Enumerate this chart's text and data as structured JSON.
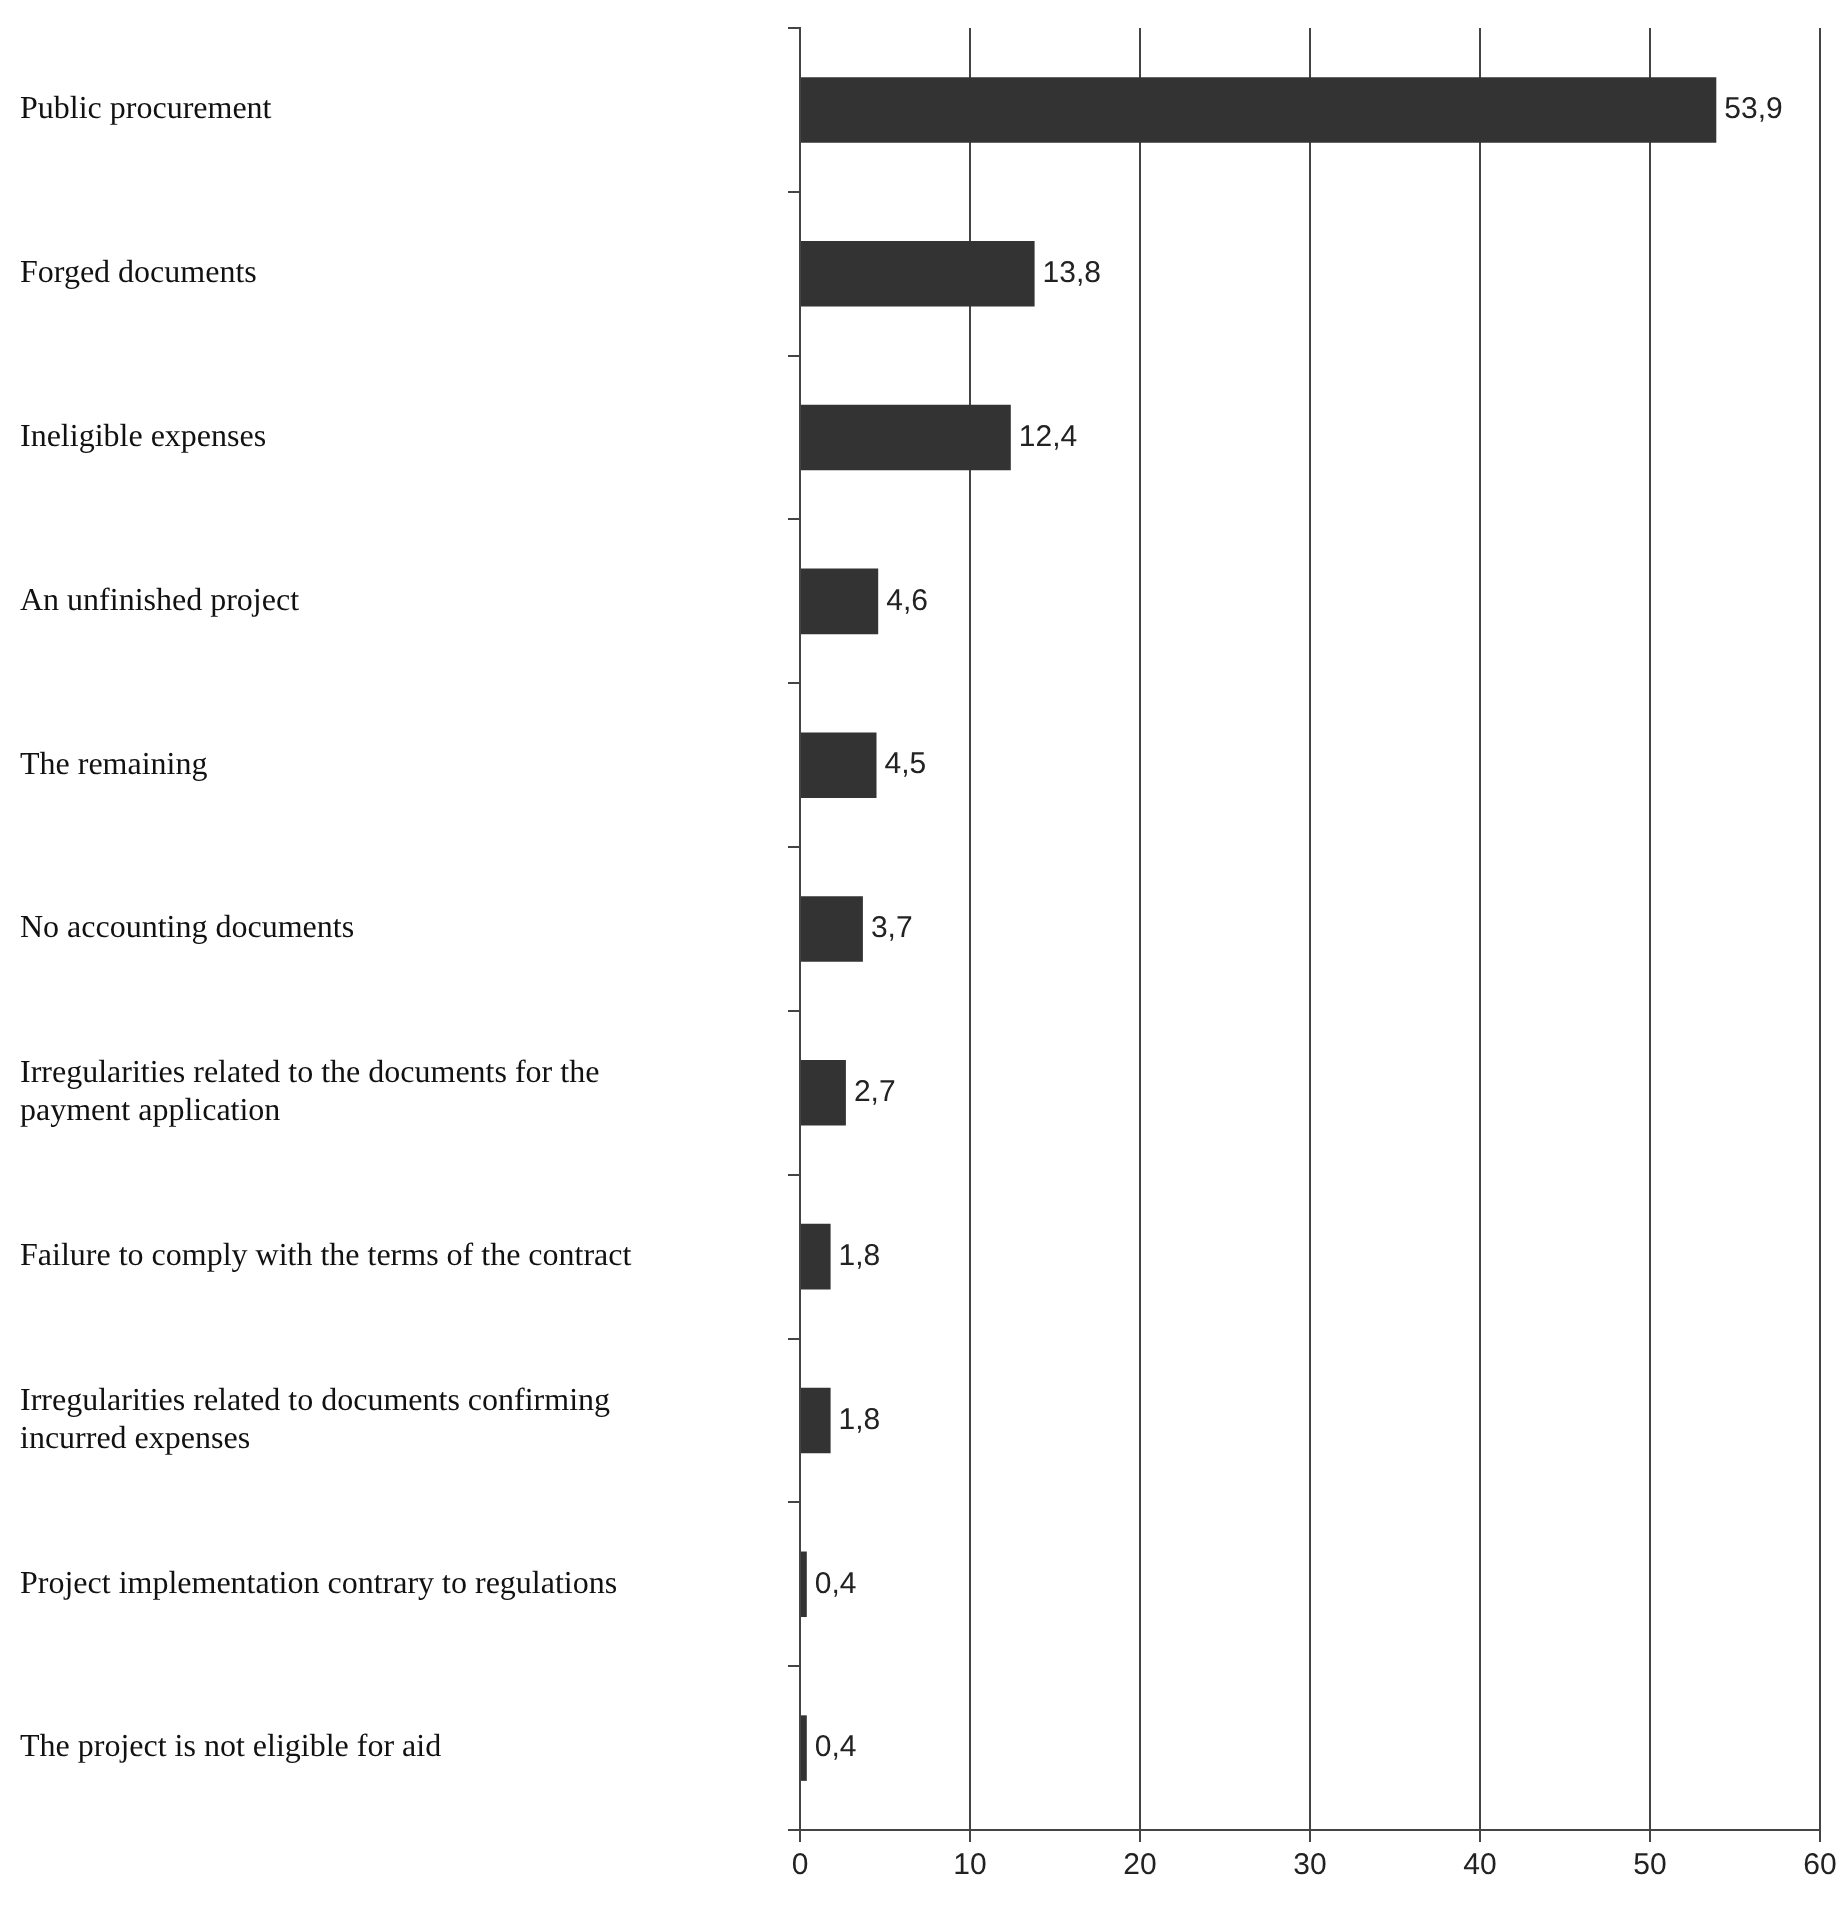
{
  "chart_data": {
    "type": "bar",
    "orientation": "horizontal",
    "categories": [
      "Public procurement",
      "Forged documents",
      "Ineligible expenses",
      "An unfinished project",
      "The remaining",
      "No accounting documents",
      "Irregularities related to the documents for the payment application",
      "Failure to comply with the terms of the contract",
      "Irregularities related to documents confirming incurred expenses",
      "Project implementation contrary to regulations",
      "The project is not eligible for aid"
    ],
    "values": [
      53.9,
      13.8,
      12.4,
      4.6,
      4.5,
      3.7,
      2.7,
      1.8,
      1.8,
      0.4,
      0.4
    ],
    "value_labels": [
      "53,9",
      "13,8",
      "12,4",
      "4,6",
      "4,5",
      "3,7",
      "2,7",
      "1,8",
      "1,8",
      "0,4",
      "0,4"
    ],
    "color": "#333333",
    "xlim": [
      0,
      60
    ],
    "xticks": [
      0,
      10,
      20,
      30,
      40,
      50,
      60
    ],
    "grid": "x",
    "legend": false
  }
}
